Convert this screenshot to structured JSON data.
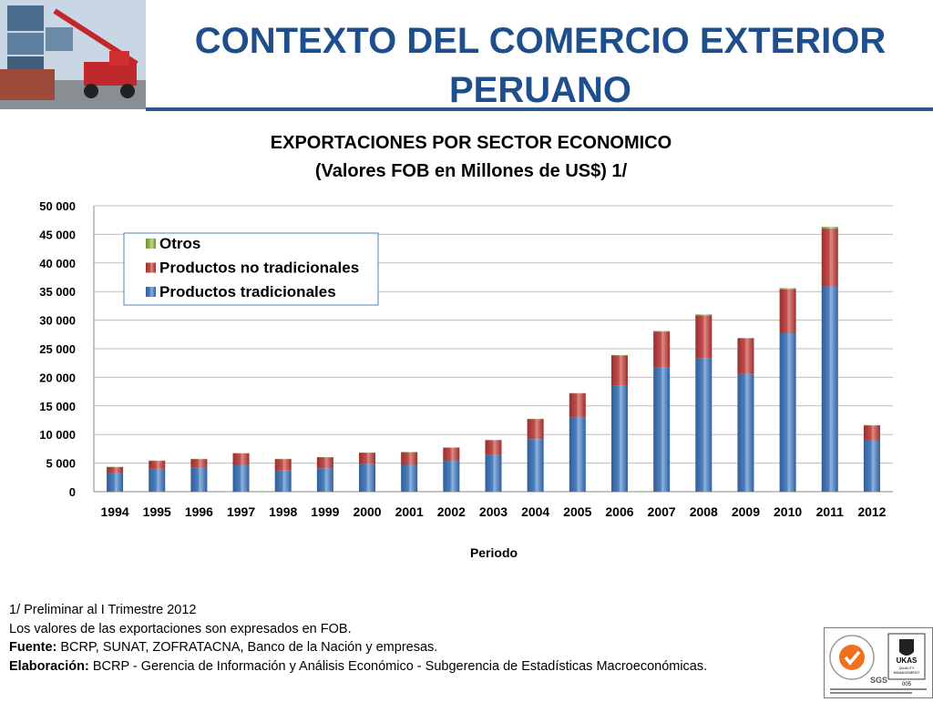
{
  "slide": {
    "title_line1": "CONTEXTO DEL COMERCIO EXTERIOR",
    "title_line2": "PERUANO"
  },
  "chart_data": {
    "type": "bar",
    "stacked": true,
    "title_line1": "EXPORTACIONES POR SECTOR ECONOMICO",
    "title_line2": "(Valores FOB en Millones de US$) 1/",
    "xlabel": "Periodo",
    "ylabel": "",
    "ylim": [
      0,
      50000
    ],
    "yticks": [
      0,
      5000,
      10000,
      15000,
      20000,
      25000,
      30000,
      35000,
      40000,
      45000,
      50000
    ],
    "ytick_labels": [
      "0",
      "5 000",
      "10 000",
      "15 000",
      "20 000",
      "25 000",
      "30 000",
      "35 000",
      "40 000",
      "45 000",
      "50 000"
    ],
    "grid": true,
    "legend_position": "top-left",
    "categories": [
      "1994",
      "1995",
      "1996",
      "1997",
      "1998",
      "1999",
      "2000",
      "2001",
      "2002",
      "2003",
      "2004",
      "2005",
      "2006",
      "2007",
      "2008",
      "2009",
      "2010",
      "2011",
      "2012"
    ],
    "series": [
      {
        "name": "Productos tradicionales",
        "color": "#4f81bd",
        "values": [
          3200,
          4000,
          4200,
          4700,
          3700,
          4100,
          4800,
          4700,
          5400,
          6400,
          9200,
          13000,
          18500,
          21700,
          23300,
          20600,
          27700,
          35900,
          9000
        ]
      },
      {
        "name": "Productos no tradicionales",
        "color": "#c0504d",
        "values": [
          1100,
          1400,
          1500,
          2000,
          2000,
          1900,
          2000,
          2200,
          2300,
          2600,
          3500,
          4200,
          5300,
          6300,
          7500,
          6200,
          7700,
          10100,
          2600
        ]
      },
      {
        "name": "Otros",
        "color": "#9bbb59",
        "values": [
          50,
          50,
          50,
          50,
          50,
          50,
          50,
          50,
          50,
          50,
          50,
          50,
          100,
          100,
          200,
          100,
          200,
          300,
          50
        ]
      }
    ]
  },
  "notes": {
    "line1": "1/  Preliminar al I Trimestre 2012",
    "line2": "Los valores de las exportaciones son expresados en FOB.",
    "source_label": "Fuente:",
    "source_text": "  BCRP, SUNAT, ZOFRATACNA, Banco de la Nación y empresas.",
    "elab_label": "Elaboración:",
    "elab_text": "  BCRP - Gerencia de Información y Análisis Económico  -  Subgerencia de Estadísticas Macroeconómicas."
  },
  "logo": {
    "sgs_text": "SGS",
    "ukas_line1": "UKAS",
    "ukas_line2": "QUALITY",
    "ukas_line3": "MANAGEMENT",
    "ukas_code": "005"
  }
}
